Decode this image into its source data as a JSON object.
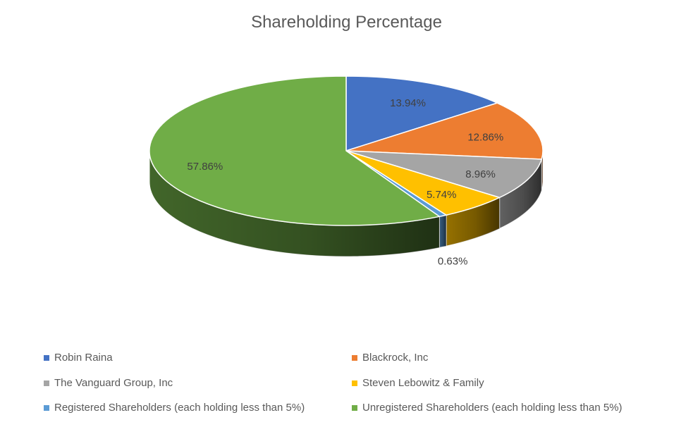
{
  "chart_data": {
    "type": "pie",
    "title": "Shareholding Percentage",
    "slices": [
      {
        "label": "Robin Raina",
        "value": 13.94,
        "value_label": "13.94%",
        "color": "#4472c4"
      },
      {
        "label": "Blackrock, Inc",
        "value": 12.86,
        "value_label": "12.86%",
        "color": "#ed7d31"
      },
      {
        "label": "The Vanguard Group, Inc",
        "value": 8.96,
        "value_label": "8.96%",
        "color": "#a5a5a5"
      },
      {
        "label": "Steven Lebowitz & Family",
        "value": 5.74,
        "value_label": "5.74%",
        "color": "#ffc000"
      },
      {
        "label": "Registered Shareholders (each holding less than 5%)",
        "value": 0.63,
        "value_label": "0.63%",
        "color": "#5b9bd5"
      },
      {
        "label": "Unregistered Shareholders (each holding less than 5%)",
        "value": 57.86,
        "value_label": "57.86%",
        "color": "#70ad47"
      }
    ],
    "legend_position": "bottom",
    "style": "3d-pie"
  }
}
